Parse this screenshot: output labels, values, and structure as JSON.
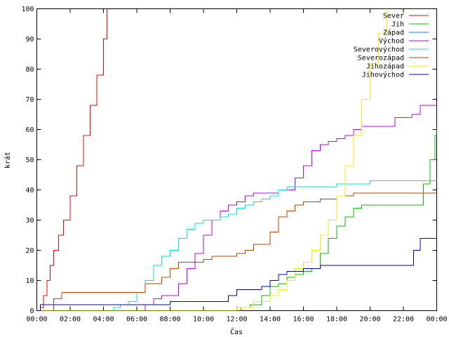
{
  "chart_data": {
    "type": "line",
    "title": "",
    "xlabel": "Čas",
    "ylabel": "krát",
    "xlim": [
      0,
      24
    ],
    "ylim": [
      0,
      100
    ],
    "x_ticks": [
      "00:00",
      "02:00",
      "04:00",
      "06:00",
      "08:00",
      "10:00",
      "12:00",
      "14:00",
      "16:00",
      "18:00",
      "20:00",
      "22:00",
      "00:00"
    ],
    "y_ticks": [
      0,
      10,
      20,
      30,
      40,
      50,
      60,
      70,
      80,
      90,
      100
    ],
    "grid": false,
    "legend_position": "top-right",
    "series": [
      {
        "name": "Sever",
        "color": "#ff0000",
        "x": [
          0,
          0.2,
          0.4,
          0.6,
          0.8,
          1.0,
          1.3,
          1.6,
          2.0,
          2.4,
          2.8,
          3.2,
          3.6,
          4.0,
          4.2
        ],
        "y": [
          0,
          1,
          5,
          10,
          15,
          20,
          25,
          30,
          38,
          48,
          58,
          68,
          78,
          90,
          100
        ]
      },
      {
        "name": "Jih",
        "color": "#00c000",
        "x": [
          0,
          12.2,
          12.25,
          12.8,
          13.5,
          14.0,
          14.5,
          15.0,
          15.5,
          16.0,
          16.5,
          17.0,
          17.5,
          18.0,
          18.5,
          19.0,
          19.5,
          20.0,
          21.0,
          22.0,
          22.8,
          23.2,
          23.6,
          23.9,
          24.0
        ],
        "y": [
          0,
          0,
          1,
          2,
          5,
          8,
          9,
          11,
          12,
          13,
          14,
          19,
          24,
          28,
          31,
          34,
          35,
          35,
          35,
          35,
          35,
          42,
          50,
          58,
          61
        ]
      },
      {
        "name": "Západ",
        "color": "#0080ff",
        "x": [],
        "y": []
      },
      {
        "name": "Východ",
        "color": "#c000ff",
        "x": [
          0,
          6.4,
          6.5,
          7.0,
          7.5,
          8.0,
          8.5,
          9.0,
          9.5,
          10.0,
          10.5,
          11.0,
          11.5,
          12.0,
          12.5,
          13.0,
          13.5,
          14.0,
          14.5,
          15.0,
          15.5,
          16.0,
          16.5,
          17.0,
          17.5,
          18.0,
          18.5,
          19.0,
          19.5,
          20.0,
          21.0,
          21.5,
          22.0,
          22.5,
          23.0,
          23.5,
          24.0
        ],
        "y": [
          0,
          0,
          2,
          4,
          5,
          5,
          9,
          14,
          19,
          25,
          30,
          33,
          35,
          36,
          38,
          39,
          39,
          39,
          40,
          40,
          44,
          48,
          53,
          55,
          56,
          57,
          58,
          60,
          61,
          61,
          61,
          64,
          64,
          65,
          68,
          68,
          68
        ]
      },
      {
        "name": "Severovýchod",
        "color": "#00e0e0",
        "x": [
          0,
          4.5,
          4.6,
          5.0,
          5.5,
          6.0,
          6.5,
          7.0,
          7.5,
          8.0,
          8.5,
          9.0,
          9.5,
          10.0,
          10.5,
          11.0,
          11.5,
          12.0,
          12.5,
          13.0,
          13.5,
          14.0,
          14.5,
          15.0,
          16.0,
          17.0,
          18.0,
          19.0,
          20.0,
          21.0,
          22.0,
          23.0,
          24.0
        ],
        "y": [
          0,
          0,
          1,
          2,
          3,
          6,
          10,
          15,
          18,
          20,
          24,
          27,
          29,
          30,
          30,
          31,
          32,
          34,
          35,
          36,
          37,
          38,
          40,
          41,
          41,
          41,
          42,
          42,
          43,
          43,
          43,
          43,
          43
        ]
      },
      {
        "name": "Severozápad",
        "color": "#c04000",
        "x": [
          0,
          0.8,
          1.0,
          1.5,
          2.0,
          3.0,
          4.0,
          5.0,
          6.0,
          6.5,
          7.0,
          7.5,
          8.0,
          8.5,
          9.0,
          9.5,
          10.0,
          10.5,
          11.0,
          11.5,
          12.0,
          12.5,
          13.0,
          13.5,
          14.0,
          14.5,
          15.0,
          15.5,
          16.0,
          17.0,
          18.0,
          19.0,
          20.0,
          21.0,
          22.0,
          23.0,
          24.0
        ],
        "y": [
          0,
          0,
          4,
          6,
          6,
          6,
          6,
          6,
          6,
          9,
          9,
          11,
          14,
          16,
          16,
          16,
          17,
          18,
          18,
          18,
          19,
          20,
          22,
          22,
          26,
          31,
          33,
          35,
          36,
          37,
          38,
          39,
          39,
          39,
          39,
          39,
          39
        ]
      },
      {
        "name": "Jihozápad",
        "color": "#f0f000",
        "x": [
          0,
          11.8,
          12.0,
          13.0,
          14.0,
          14.5,
          15.0,
          15.5,
          16.0,
          16.5,
          17.0,
          17.5,
          18.0,
          18.5,
          19.0,
          19.5,
          20.0,
          20.5,
          21.0
        ],
        "y": [
          0,
          0,
          1,
          3,
          5,
          7,
          10,
          14,
          16,
          20,
          25,
          30,
          38,
          48,
          58,
          70,
          82,
          92,
          100
        ]
      },
      {
        "name": "Jihovýchod",
        "color": "#0000c0",
        "x": [
          0,
          0.2,
          1.0,
          2.0,
          3.0,
          4.0,
          5.0,
          6.0,
          7.0,
          8.0,
          9.0,
          10.0,
          11.0,
          11.5,
          12.0,
          13.0,
          13.5,
          14.0,
          14.5,
          15.0,
          15.5,
          16.0,
          17.0,
          18.0,
          19.0,
          20.0,
          21.0,
          22.0,
          22.4,
          22.6,
          23.0,
          24.0
        ],
        "y": [
          0,
          2,
          2,
          2,
          2,
          2,
          2,
          2,
          2,
          3,
          3,
          3,
          3,
          5,
          7,
          7,
          8,
          10,
          12,
          13,
          13,
          14,
          15,
          15,
          15,
          15,
          15,
          15,
          15,
          20,
          24,
          24
        ]
      }
    ]
  }
}
